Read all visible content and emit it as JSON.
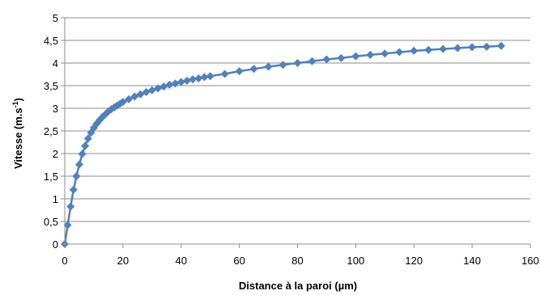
{
  "chart_data": {
    "type": "scatter",
    "title": "",
    "xlabel": "Distance à la paroi (µm)",
    "ylabel": {
      "text": "Vitesse (m.s",
      "sup": "-1",
      "suffix": ")"
    },
    "xlim": [
      0,
      160
    ],
    "ylim": [
      0,
      5
    ],
    "xticks": [
      "0",
      "20",
      "40",
      "60",
      "80",
      "100",
      "120",
      "140",
      "160"
    ],
    "yticks": [
      "0",
      "0,5",
      "1",
      "1,5",
      "2",
      "2,5",
      "3",
      "3,5",
      "4",
      "4,5",
      "5"
    ],
    "grid": "horizontal",
    "legend": "none",
    "series_color": "#4F81BD",
    "series": [
      {
        "marker": "diamond",
        "line": true,
        "x": [
          0,
          1,
          2,
          3,
          4,
          5,
          6,
          7,
          8,
          9,
          10,
          11,
          12,
          13,
          14,
          15,
          16,
          17,
          18,
          19,
          20,
          22,
          24,
          26,
          28,
          30,
          32,
          34,
          36,
          38,
          40,
          42,
          44,
          46,
          48,
          50,
          55,
          60,
          65,
          70,
          75,
          80,
          85,
          90,
          95,
          100,
          105,
          110,
          115,
          120,
          125,
          130,
          135,
          140,
          145,
          150
        ],
        "y": [
          0,
          0.42,
          0.83,
          1.2,
          1.5,
          1.76,
          1.99,
          2.17,
          2.33,
          2.46,
          2.57,
          2.66,
          2.74,
          2.81,
          2.87,
          2.93,
          2.98,
          3.02,
          3.06,
          3.1,
          3.14,
          3.2,
          3.26,
          3.31,
          3.36,
          3.4,
          3.44,
          3.48,
          3.52,
          3.55,
          3.58,
          3.61,
          3.64,
          3.66,
          3.69,
          3.71,
          3.76,
          3.82,
          3.87,
          3.92,
          3.96,
          4.0,
          4.04,
          4.08,
          4.11,
          4.15,
          4.18,
          4.21,
          4.24,
          4.27,
          4.29,
          4.31,
          4.33,
          4.35,
          4.36,
          4.38
        ]
      }
    ]
  }
}
